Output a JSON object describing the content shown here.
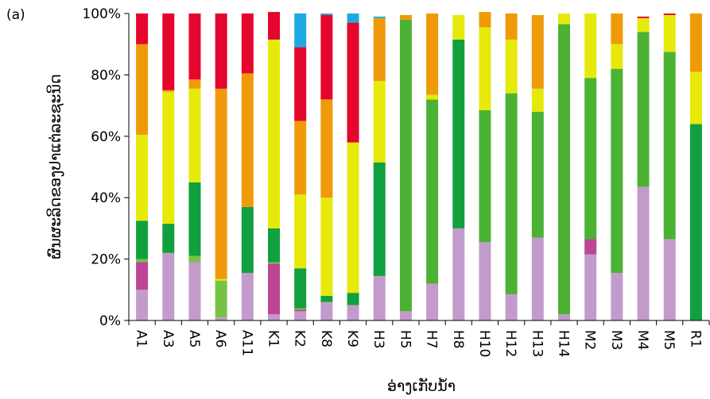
{
  "chart_data": {
    "type": "bar",
    "stacked": true,
    "percent": true,
    "panel_label": "(a)",
    "title": "",
    "xlabel": "ອ່າງເກັບນ້ຳ",
    "ylabel": "ຜົນຜະລິດຂອງປາແຕ່ລະຊະນິດ",
    "ylim": [
      0,
      100
    ],
    "yticks": [
      0,
      20,
      40,
      60,
      80,
      100
    ],
    "ytick_labels": [
      "0%",
      "20%",
      "40%",
      "60%",
      "80%",
      "100%"
    ],
    "grid": false,
    "legend": false,
    "categories": [
      "A1",
      "A3",
      "A5",
      "A6",
      "A11",
      "K1",
      "K2",
      "K8",
      "K9",
      "H3",
      "H5",
      "H7",
      "H8",
      "H10",
      "H12",
      "H13",
      "H14",
      "M2",
      "M3",
      "M4",
      "M5",
      "R1"
    ],
    "series": [
      {
        "color": "#c39bcb",
        "values": [
          10,
          22,
          19,
          1,
          15.5,
          2,
          3,
          6,
          5,
          14.5,
          3,
          12,
          30,
          25.5,
          8.5,
          27,
          2,
          21.5,
          15.5,
          43.5,
          26.5,
          0
        ]
      },
      {
        "color": "#bd4596",
        "values": [
          9,
          0,
          0,
          0,
          0,
          16.5,
          0.5,
          0,
          0,
          0,
          0,
          0,
          0,
          0,
          0,
          0,
          0,
          5,
          0,
          0,
          0,
          0
        ]
      },
      {
        "color": "#77c143",
        "values": [
          1,
          0,
          2,
          12,
          0,
          0.5,
          0.5,
          0,
          0,
          0,
          0,
          0,
          0,
          0,
          0,
          0,
          0,
          0,
          0,
          0,
          0,
          0
        ]
      },
      {
        "color": "#4cb234",
        "values": [
          0,
          0,
          0,
          0,
          0,
          0,
          0,
          0,
          0,
          0,
          95,
          60,
          0,
          43,
          65.5,
          41,
          94.5,
          52.5,
          66.5,
          50.5,
          61,
          0
        ]
      },
      {
        "color": "#10a03d",
        "values": [
          12.5,
          9.5,
          24,
          0,
          21.5,
          11,
          13,
          2,
          4,
          37,
          0,
          0,
          61.5,
          0,
          0,
          0,
          0,
          0,
          0,
          0,
          0,
          64
        ]
      },
      {
        "color": "#e6e90a",
        "values": [
          28,
          43,
          30.5,
          0.5,
          0,
          61.5,
          24,
          32,
          49,
          26.5,
          0,
          1.5,
          8,
          27,
          17.5,
          7.5,
          3.5,
          21,
          8,
          4.5,
          12,
          17
        ]
      },
      {
        "color": "#f09a0a",
        "values": [
          29.5,
          0.5,
          3,
          62,
          43.5,
          0,
          24,
          32,
          0,
          20.5,
          1.5,
          26.5,
          0,
          5,
          8.5,
          24,
          0,
          0,
          10,
          0,
          0,
          19
        ]
      },
      {
        "color": "#e4062d",
        "values": [
          10,
          25,
          21.5,
          24.5,
          19.5,
          9,
          24,
          27.5,
          39,
          0,
          0,
          0,
          0,
          0,
          0,
          0,
          0,
          0,
          0,
          0.5,
          0.5,
          0
        ]
      },
      {
        "color": "#1eaae0",
        "values": [
          0,
          0,
          0,
          0,
          0,
          0,
          11,
          0.5,
          3,
          0.5,
          0,
          0,
          0,
          0,
          0,
          0,
          0,
          0,
          0,
          0,
          0,
          0
        ]
      }
    ]
  }
}
